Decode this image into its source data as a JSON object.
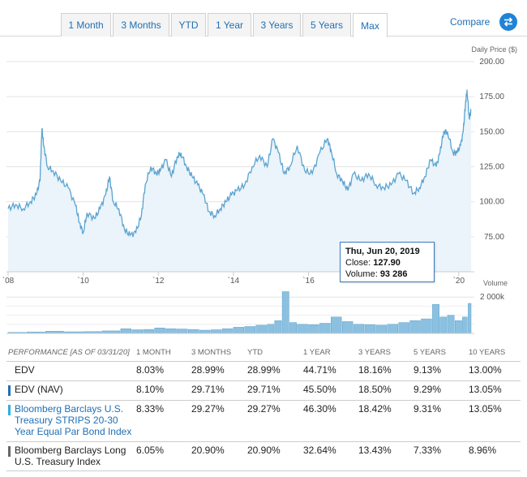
{
  "tabs": [
    {
      "label": "1 Month",
      "active": false
    },
    {
      "label": "3 Months",
      "active": false
    },
    {
      "label": "YTD",
      "active": false
    },
    {
      "label": "1 Year",
      "active": false
    },
    {
      "label": "3 Years",
      "active": false
    },
    {
      "label": "5 Years",
      "active": false
    },
    {
      "label": "Max",
      "active": true
    }
  ],
  "compare_label": "Compare",
  "chart_data": [
    {
      "type": "area",
      "ylabel": "Daily Price ($)",
      "ylim": [
        50,
        200
      ],
      "y_ticks": [
        "200.00",
        "175.00",
        "150.00",
        "125.00",
        "100.00",
        "75.00"
      ],
      "x_ticks": [
        "`08",
        "`10",
        "`12",
        "`14",
        "`16",
        "`20"
      ],
      "xlim": [
        2008.0,
        2020.35
      ],
      "grid": true,
      "color": "#5ba3cf",
      "x": [
        2008.0,
        2008.2,
        2008.4,
        2008.6,
        2008.75,
        2008.85,
        2008.9,
        2008.95,
        2009.05,
        2009.2,
        2009.4,
        2009.6,
        2009.8,
        2009.9,
        2010.0,
        2010.1,
        2010.3,
        2010.45,
        2010.6,
        2010.7,
        2010.8,
        2010.95,
        2011.1,
        2011.25,
        2011.4,
        2011.55,
        2011.65,
        2011.8,
        2011.95,
        2012.05,
        2012.2,
        2012.35,
        2012.5,
        2012.6,
        2012.75,
        2012.9,
        2013.05,
        2013.2,
        2013.35,
        2013.5,
        2013.65,
        2013.8,
        2013.95,
        2014.1,
        2014.3,
        2014.5,
        2014.7,
        2014.9,
        2015.05,
        2015.2,
        2015.35,
        2015.5,
        2015.7,
        2015.9,
        2016.1,
        2016.3,
        2016.5,
        2016.6,
        2016.75,
        2016.9,
        2017.05,
        2017.2,
        2017.4,
        2017.6,
        2017.8,
        2018.0,
        2018.2,
        2018.4,
        2018.6,
        2018.8,
        2018.95,
        2019.1,
        2019.25,
        2019.4,
        2019.5,
        2019.6,
        2019.7,
        2019.85,
        2019.95,
        2020.05,
        2020.12,
        2020.18,
        2020.22,
        2020.28,
        2020.33
      ],
      "values": [
        95,
        98,
        95,
        100,
        105,
        115,
        152,
        140,
        125,
        122,
        115,
        110,
        97,
        85,
        78,
        92,
        88,
        95,
        105,
        118,
        100,
        95,
        80,
        76,
        78,
        90,
        112,
        125,
        120,
        122,
        130,
        118,
        132,
        135,
        125,
        118,
        112,
        105,
        93,
        90,
        95,
        100,
        105,
        108,
        112,
        125,
        133,
        125,
        145,
        135,
        120,
        125,
        140,
        122,
        120,
        135,
        145,
        137,
        120,
        115,
        108,
        120,
        115,
        120,
        112,
        110,
        112,
        120,
        115,
        106,
        110,
        118,
        130,
        125,
        135,
        150,
        150,
        135,
        135,
        140,
        150,
        170,
        180,
        160,
        165
      ]
    },
    {
      "type": "bar",
      "ylabel": "Volume",
      "y_ticks": [
        "2 000k"
      ],
      "ylim": [
        0,
        2500
      ],
      "x": [
        2008.0,
        2008.5,
        2009.0,
        2009.5,
        2010.0,
        2010.5,
        2011.0,
        2011.3,
        2011.6,
        2011.9,
        2012.2,
        2012.5,
        2012.8,
        2013.1,
        2013.4,
        2013.7,
        2014.0,
        2014.3,
        2014.6,
        2014.9,
        2015.1,
        2015.3,
        2015.5,
        2015.7,
        2016.0,
        2016.3,
        2016.6,
        2016.9,
        2017.2,
        2017.5,
        2017.8,
        2018.1,
        2018.4,
        2018.7,
        2019.0,
        2019.3,
        2019.5,
        2019.7,
        2019.9,
        2020.1,
        2020.25
      ],
      "values": [
        60,
        80,
        120,
        90,
        100,
        140,
        260,
        200,
        220,
        300,
        260,
        240,
        220,
        180,
        200,
        260,
        340,
        380,
        450,
        500,
        700,
        2300,
        600,
        500,
        480,
        560,
        900,
        650,
        500,
        480,
        450,
        500,
        600,
        700,
        800,
        1600,
        900,
        1000,
        700,
        900,
        1650
      ]
    }
  ],
  "tooltip": {
    "date": "Thu, Jun 20, 2019",
    "close_label": "Close:",
    "close_value": "127.90",
    "volume_label": "Volume:",
    "volume_value": "93 286"
  },
  "performance": {
    "headers": [
      "PERFORMANCE [as of 03/31/20]",
      "1 MONTH",
      "3 MONTHS",
      "YTD",
      "1 YEAR",
      "3 YEARS",
      "5 YEARS",
      "10 YEARS"
    ],
    "rows": [
      {
        "name": "EDV",
        "marker": "",
        "cells": [
          "8.03%",
          "28.99%",
          "28.99%",
          "44.71%",
          "18.16%",
          "9.13%",
          "13.00%"
        ]
      },
      {
        "name": "EDV (NAV)",
        "marker": "#1f6fb5",
        "cells": [
          "8.10%",
          "29.71%",
          "29.71%",
          "45.50%",
          "18.50%",
          "9.29%",
          "13.05%"
        ]
      },
      {
        "name": "Bloomberg Barclays U.S. Treasury STRIPS 20-30 Year Equal Par Bond Index",
        "marker": "#2eaee0",
        "link": true,
        "cells": [
          "8.33%",
          "29.27%",
          "29.27%",
          "46.30%",
          "18.42%",
          "9.31%",
          "13.05%"
        ]
      },
      {
        "name": "Bloomberg Barclays Long U.S. Treasury Index",
        "marker": "#666666",
        "cells": [
          "6.05%",
          "20.90%",
          "20.90%",
          "32.64%",
          "13.43%",
          "7.33%",
          "8.96%"
        ]
      }
    ]
  }
}
